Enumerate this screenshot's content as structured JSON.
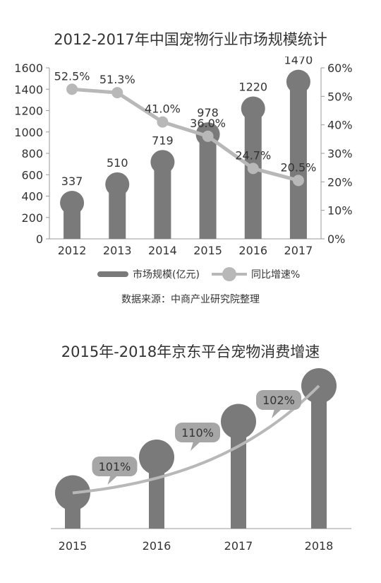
{
  "colors": {
    "bar": "#7a7a7a",
    "line": "#b8b8b8",
    "axis": "#999999",
    "text": "#333333",
    "bubble": "#a6a6a6"
  },
  "chart_data": [
    {
      "type": "bar",
      "title": "2012-2017年中国宠物行业市场规模统计",
      "categories": [
        "2012",
        "2013",
        "2014",
        "2015",
        "2016",
        "2017"
      ],
      "series": [
        {
          "name": "市场规模(亿元)",
          "type": "bar",
          "axis": "left",
          "values": [
            337,
            510,
            719,
            978,
            1220,
            1470
          ],
          "labels": [
            "337",
            "510",
            "719",
            "978",
            "1220",
            "1470"
          ]
        },
        {
          "name": "同比增速%",
          "type": "line",
          "axis": "right",
          "values": [
            52.5,
            51.3,
            41.0,
            36.0,
            24.7,
            20.5
          ],
          "labels": [
            "52.5%",
            "51.3%",
            "41.0%",
            "36.0%",
            "24.7%",
            "20.5%"
          ]
        }
      ],
      "ylim": [
        0,
        1600
      ],
      "yticks": [
        "0",
        "200",
        "400",
        "600",
        "800",
        "1000",
        "1200",
        "1400",
        "1600"
      ],
      "y2lim": [
        0,
        60
      ],
      "y2ticks": [
        "0%",
        "10%",
        "20%",
        "30%",
        "40%",
        "50%",
        "60%"
      ],
      "legend_position": "bottom",
      "source": "数据来源：中商产业研究院整理"
    },
    {
      "type": "bar",
      "title": "2015年-2018年京东平台宠物消费增速",
      "categories": [
        "2015",
        "2016",
        "2017",
        "2018"
      ],
      "series": [
        {
          "name": "",
          "type": "bar",
          "values": [
            1,
            2,
            3,
            4
          ]
        }
      ],
      "annotations": [
        {
          "between": [
            "2015",
            "2016"
          ],
          "text": "101%"
        },
        {
          "between": [
            "2016",
            "2017"
          ],
          "text": "110%"
        },
        {
          "between": [
            "2017",
            "2018"
          ],
          "text": "102%"
        }
      ]
    }
  ]
}
